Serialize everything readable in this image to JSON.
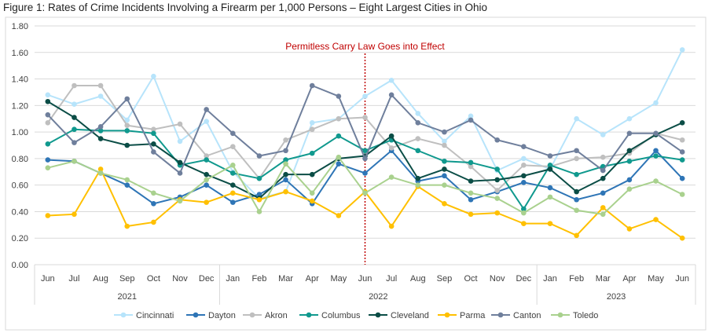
{
  "chart_data": {
    "type": "line",
    "title": "Figure 1: Rates of Crime Incidents Involving a Firearm per 1,000 Persons – Eight Largest Cities in Ohio",
    "annotation": "Permitless Carry Law Goes into Effect",
    "annotation_at": "Jun 2022",
    "annotation_color": "#c00000",
    "categories": [
      "Jun",
      "Jul",
      "Aug",
      "Sep",
      "Oct",
      "Nov",
      "Dec",
      "Jan",
      "Feb",
      "Mar",
      "Apr",
      "May",
      "Jun",
      "Jul",
      "Aug",
      "Sep",
      "Oct",
      "Nov",
      "Dec",
      "Jan",
      "Feb",
      "Mar",
      "Apr",
      "May",
      "Jun"
    ],
    "year_groups": [
      {
        "label": "2021",
        "months": 7
      },
      {
        "label": "2022",
        "months": 12
      },
      {
        "label": "2023",
        "months": 6
      }
    ],
    "ylim": [
      0,
      1.8
    ],
    "yticks": [
      "0.00",
      "0.20",
      "0.40",
      "0.60",
      "0.80",
      "1.00",
      "1.20",
      "1.40",
      "1.60",
      "1.80"
    ],
    "grid": true,
    "legend_position": "bottom",
    "series": [
      {
        "name": "Cincinnati",
        "color": "#b7e4fb",
        "values": [
          1.28,
          1.21,
          1.27,
          1.09,
          1.42,
          0.93,
          1.08,
          0.7,
          0.5,
          0.55,
          1.07,
          1.1,
          1.27,
          1.39,
          1.14,
          0.93,
          1.12,
          0.71,
          0.8,
          0.72,
          1.1,
          0.98,
          1.1,
          1.22,
          1.62
        ]
      },
      {
        "name": "Dayton",
        "color": "#2e75b6",
        "values": [
          0.79,
          0.78,
          0.69,
          0.6,
          0.46,
          0.51,
          0.6,
          0.47,
          0.53,
          0.64,
          0.46,
          0.76,
          0.69,
          0.86,
          0.63,
          0.67,
          0.49,
          0.55,
          0.62,
          0.58,
          0.49,
          0.54,
          0.64,
          0.86,
          0.65
        ]
      },
      {
        "name": "Akron",
        "color": "#bfbfbf",
        "values": [
          1.07,
          1.35,
          1.35,
          1.05,
          1.02,
          1.06,
          0.82,
          0.89,
          0.65,
          0.94,
          1.02,
          1.1,
          1.11,
          0.88,
          0.95,
          0.9,
          0.74,
          0.56,
          0.75,
          0.74,
          0.8,
          0.81,
          0.84,
          0.99,
          0.94
        ]
      },
      {
        "name": "Columbus",
        "color": "#10998e",
        "values": [
          0.91,
          1.02,
          1.01,
          1.01,
          0.99,
          0.75,
          0.79,
          0.69,
          0.65,
          0.79,
          0.84,
          0.97,
          0.86,
          0.94,
          0.86,
          0.78,
          0.77,
          0.72,
          0.42,
          0.75,
          0.68,
          0.74,
          0.78,
          0.82,
          0.79
        ]
      },
      {
        "name": "Cleveland",
        "color": "#0b4d46",
        "values": [
          1.23,
          1.11,
          0.95,
          0.9,
          0.91,
          0.77,
          0.68,
          0.6,
          0.5,
          0.68,
          0.68,
          0.8,
          0.82,
          0.97,
          0.65,
          0.72,
          0.63,
          0.64,
          0.67,
          0.72,
          0.55,
          0.65,
          0.86,
          0.98,
          1.07
        ]
      },
      {
        "name": "Parma",
        "color": "#ffc000",
        "values": [
          0.37,
          0.38,
          0.72,
          0.29,
          0.32,
          0.49,
          0.47,
          0.54,
          0.49,
          0.55,
          0.48,
          0.37,
          0.55,
          0.29,
          0.59,
          0.46,
          0.38,
          0.39,
          0.31,
          0.31,
          0.22,
          0.43,
          0.27,
          0.34,
          0.2
        ]
      },
      {
        "name": "Canton",
        "color": "#6f7f9c",
        "values": [
          1.13,
          0.92,
          1.04,
          1.25,
          0.85,
          0.69,
          1.17,
          0.99,
          0.82,
          0.86,
          1.35,
          1.27,
          0.8,
          1.28,
          1.07,
          1.0,
          1.09,
          0.94,
          0.89,
          0.82,
          0.86,
          0.71,
          0.99,
          0.99,
          0.85
        ]
      },
      {
        "name": "Toledo",
        "color": "#a9d18e",
        "values": [
          0.73,
          0.78,
          0.69,
          0.64,
          0.54,
          0.48,
          0.64,
          0.75,
          0.4,
          0.76,
          0.54,
          0.81,
          0.54,
          0.66,
          0.6,
          0.6,
          0.54,
          0.5,
          0.39,
          0.51,
          0.41,
          0.38,
          0.57,
          0.63,
          0.53
        ]
      }
    ]
  }
}
